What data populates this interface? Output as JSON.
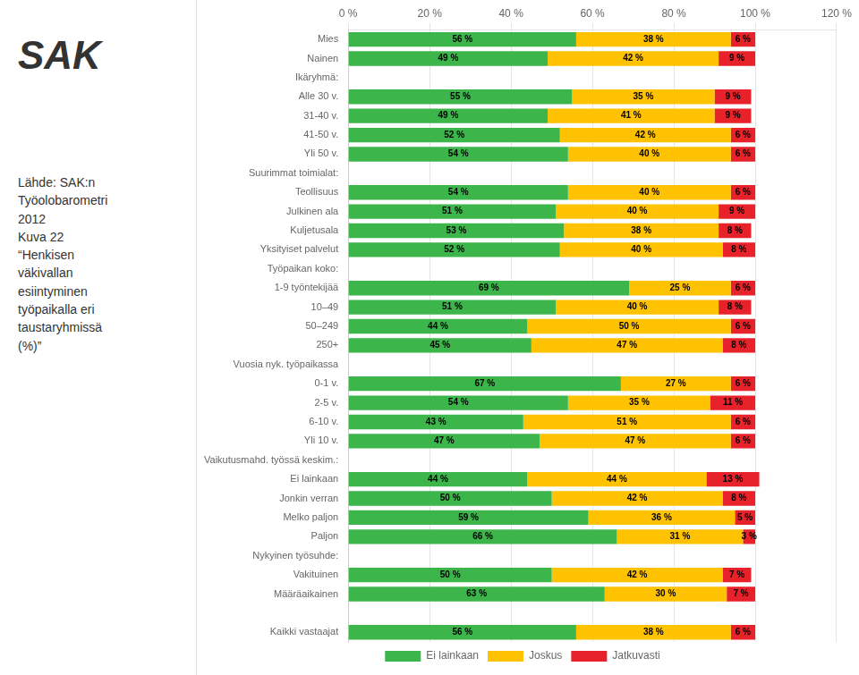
{
  "chart_data": {
    "type": "bar",
    "orientation": "horizontal",
    "stacked": true,
    "data_labels": true,
    "grid": true,
    "legend": "bottom",
    "annotations": [
      "SAK",
      "Lähde: SAK:n",
      "Työolobarometri",
      "2012",
      "Kuva 22",
      "“Henkisen",
      "väkivallan",
      "esiintyminen",
      "työpaikalla eri",
      "taustaryhmissä",
      "(%)”"
    ],
    "categories": [
      "Mies",
      "Nainen",
      "Ikäryhmä:",
      "Alle 30 v.",
      "31-40 v.",
      "41-50 v.",
      "Yli 50 v.",
      "Suurimmat toimialat:",
      "Teollisuus",
      "Julkinen ala",
      "Kuljetusala",
      "Yksityiset palvelut",
      "Työpaikan koko:",
      "1-9 työntekijää",
      "10–49",
      "50–249",
      "250+",
      "Vuosia nyk. työpaikassa",
      "0-1 v.",
      "2-5 v.",
      "6-10 v.",
      "Yli 10 v.",
      "Vaikutusmahd. työssä keskim.:",
      "Ei lainkaan",
      "Jonkin verran",
      "Melko paljon",
      "Paljon",
      "Nykyinen työsuhde:",
      "Vakituinen",
      "Määräaikainen",
      null,
      "Kaikki vastaajat"
    ],
    "series": [
      {
        "name": "Ei lainkaan",
        "color": "#3cb54a",
        "values": [
          56,
          49,
          null,
          55,
          49,
          52,
          54,
          null,
          54,
          51,
          53,
          52,
          null,
          69,
          51,
          44,
          45,
          null,
          67,
          54,
          43,
          47,
          null,
          44,
          50,
          59,
          66,
          null,
          50,
          63,
          null,
          56
        ],
        "value_labels": [
          "56 %",
          "49 %",
          null,
          "55 %",
          "49 %",
          "52 %",
          "54 %",
          null,
          "54 %",
          "51 %",
          "53 %",
          "52 %",
          null,
          "69 %",
          "51 %",
          "44 %",
          "45 %",
          null,
          "67 %",
          "54 %",
          "43 %",
          "47 %",
          null,
          "44 %",
          "50 %",
          "59 %",
          "66 %",
          null,
          "50 %",
          "63 %",
          null,
          "56 %"
        ]
      },
      {
        "name": "Joskus",
        "color": "#ffc200",
        "values": [
          38,
          42,
          null,
          35,
          41,
          42,
          40,
          null,
          40,
          40,
          38,
          40,
          null,
          25,
          40,
          50,
          47,
          null,
          27,
          35,
          51,
          47,
          null,
          44,
          42,
          36,
          31,
          null,
          42,
          30,
          null,
          38
        ],
        "value_labels": [
          "38 %",
          "42 %",
          null,
          "35 %",
          "41 %",
          "42 %",
          "40 %",
          null,
          "40 %",
          "40 %",
          "38 %",
          "40 %",
          null,
          "25 %",
          "40 %",
          "50 %",
          "47 %",
          null,
          "27 %",
          "35 %",
          "51 %",
          "47 %",
          null,
          "44 %",
          "42 %",
          "36 %",
          "31 %",
          null,
          "42 %",
          "30 %",
          null,
          "38 %"
        ]
      },
      {
        "name": "Jatkuvasti",
        "color": "#e8222a",
        "values": [
          6,
          9,
          null,
          9,
          9,
          6,
          6,
          null,
          6,
          9,
          8,
          8,
          null,
          6,
          8,
          6,
          8,
          null,
          6,
          11,
          6,
          6,
          null,
          13,
          8,
          5,
          3,
          null,
          7,
          7,
          null,
          6
        ],
        "value_labels": [
          "6 %",
          "9 %",
          null,
          "9 %",
          "9 %",
          "6 %",
          "6 %",
          null,
          "6 %",
          "9 %",
          "8 %",
          "8 %",
          null,
          "6 %",
          "8 %",
          "6 %",
          "8 %",
          null,
          "6 %",
          "11 %",
          "6 %",
          "6 %",
          null,
          "13 %",
          "8 %",
          "5 %",
          "3 %",
          null,
          "7 %",
          "7 %",
          null,
          "6 %"
        ]
      }
    ],
    "xlim": [
      0,
      120
    ],
    "xticks": [
      {
        "value": 0,
        "label": "0 %"
      },
      {
        "value": 20,
        "label": "20 %"
      },
      {
        "value": 40,
        "label": "40 %"
      },
      {
        "value": 60,
        "label": "60 %"
      },
      {
        "value": 80,
        "label": "80 %"
      },
      {
        "value": 100,
        "label": "100 %"
      },
      {
        "value": 120,
        "label": "120 %"
      }
    ]
  }
}
